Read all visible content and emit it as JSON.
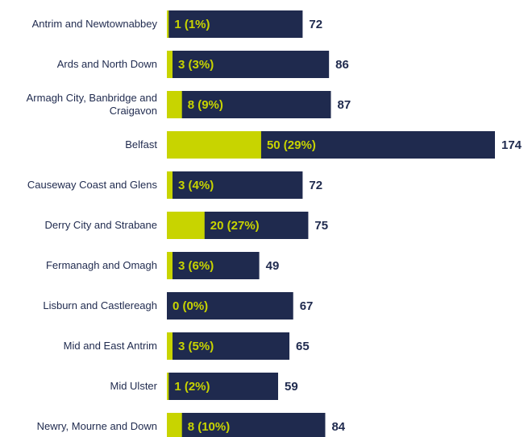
{
  "chart_data": {
    "type": "bar",
    "categories": [
      "Antrim and Newtownabbey",
      "Ards and North Down",
      "Armagh City, Banbridge and Craigavon",
      "Belfast",
      "Causeway Coast and Glens",
      "Derry City and Strabane",
      "Fermanagh and Omagh",
      "Lisburn and Castlereagh",
      "Mid and East Antrim",
      "Mid Ulster",
      "Newry, Mourne and Down"
    ],
    "series": [
      {
        "color": "#1f2a4e",
        "values": [
          72,
          86,
          87,
          174,
          72,
          75,
          49,
          67,
          65,
          59,
          84
        ]
      },
      {
        "color": "#c8d400",
        "values": [
          1,
          3,
          8,
          50,
          3,
          20,
          3,
          0,
          3,
          1,
          8
        ],
        "value_labels": [
          "1 (1%)",
          "3 (3%)",
          "8 (9%)",
          "50 (29%)",
          "3 (4%)",
          "20 (27%)",
          "3 (6%)",
          "0 (0%)",
          "3 (5%)",
          "1 (2%)",
          "8 (10%)"
        ]
      }
    ]
  }
}
